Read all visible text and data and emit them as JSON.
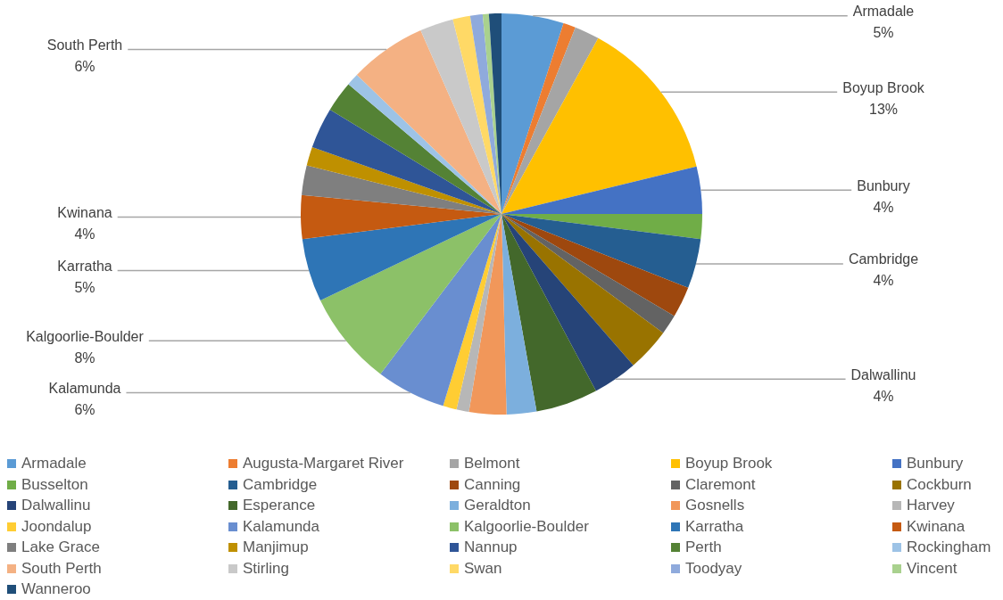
{
  "chart_data": {
    "type": "pie",
    "legend": "bottom",
    "categories": [
      "Armadale",
      "Augusta-Margaret River",
      "Belmont",
      "Boyup Brook",
      "Bunbury",
      "Busselton",
      "Cambridge",
      "Canning",
      "Claremont",
      "Cockburn",
      "Dalwallinu",
      "Esperance",
      "Geraldton",
      "Gosnells",
      "Harvey",
      "Joondalup",
      "Kalamunda",
      "Kalgoorlie-Boulder",
      "Karratha",
      "Kwinana",
      "Lake Grace",
      "Manjimup",
      "Nannup",
      "Perth",
      "Rockingham",
      "South Perth",
      "Stirling",
      "Swan",
      "Toodyay",
      "Vincent",
      "Wanneroo"
    ],
    "values": [
      5.0,
      1.0,
      2.0,
      13.2,
      3.8,
      2.0,
      4.0,
      2.5,
      1.6,
      3.5,
      3.6,
      5.0,
      2.4,
      3.0,
      1.0,
      1.1,
      5.6,
      7.6,
      5.1,
      3.5,
      2.4,
      1.5,
      3.3,
      2.5,
      1.0,
      6.2,
      2.7,
      1.4,
      1.0,
      0.5,
      1.0
    ],
    "colors": [
      "#5b9bd5",
      "#ed7d31",
      "#a5a5a5",
      "#ffc000",
      "#4472c4",
      "#70ad47",
      "#255e91",
      "#9e480e",
      "#636363",
      "#997300",
      "#264478",
      "#43682b",
      "#7cafdd",
      "#f1975a",
      "#b7b7b7",
      "#ffcd33",
      "#698ed0",
      "#8cc168",
      "#2e75b6",
      "#c55a11",
      "#7f7f7f",
      "#bf9000",
      "#2f5597",
      "#548235",
      "#9dc3e6",
      "#f4b183",
      "#c9c9c9",
      "#ffd966",
      "#8faadc",
      "#a9d18e",
      "#1f4e79"
    ],
    "value_labels": [
      "5%",
      null,
      null,
      "13%",
      "4%",
      null,
      "4%",
      null,
      null,
      null,
      "4%",
      null,
      null,
      null,
      null,
      null,
      "6%",
      "8%",
      "5%",
      "4%",
      null,
      null,
      null,
      null,
      null,
      "6%",
      null,
      null,
      null,
      null,
      null
    ]
  }
}
